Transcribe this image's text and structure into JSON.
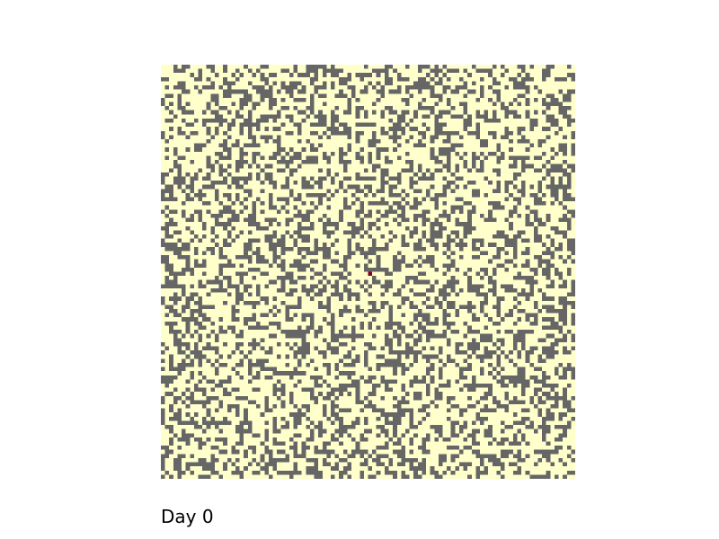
{
  "caption": "Day 0",
  "chart_data": {
    "type": "heatmap",
    "title": "",
    "xlabel": "",
    "ylabel": "",
    "rows": 100,
    "cols": 100,
    "states": [
      "empty",
      "tree",
      "burning"
    ],
    "colors": {
      "empty": "#666666",
      "tree": "#ffffcc",
      "burning": "#800026"
    },
    "tree_density": 0.6,
    "random_seed": 20240101,
    "burning_cells": [
      [
        50,
        50
      ]
    ],
    "grid": false
  }
}
